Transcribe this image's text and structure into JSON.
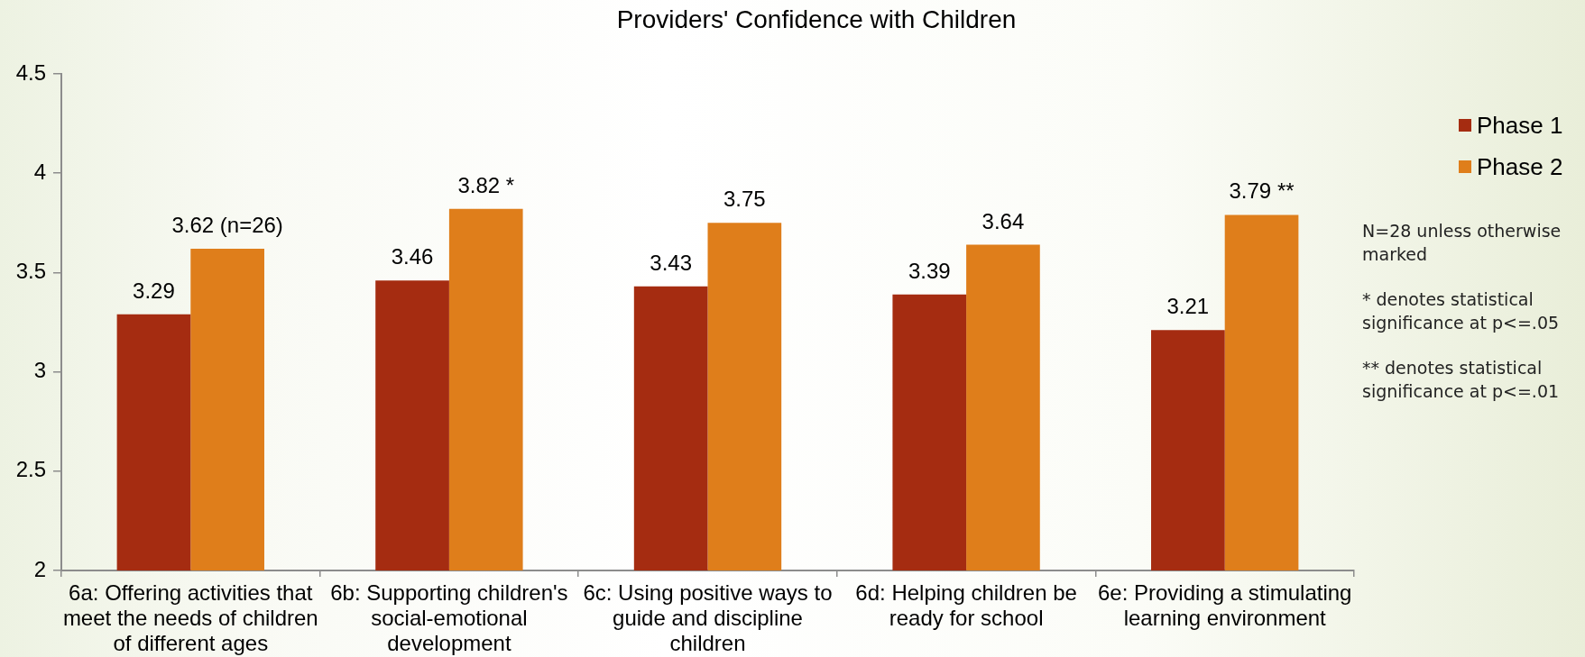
{
  "chart_data": {
    "type": "bar",
    "title": "Providers' Confidence with Children",
    "categories": [
      "6a: Offering activities that meet the needs of children of different ages",
      "6b: Supporting children's social-emotional development",
      "6c: Using positive ways to guide and discipline children",
      "6d: Helping children be ready for school",
      "6e: Providing a stimulating learning environment"
    ],
    "series": [
      {
        "name": "Phase 1",
        "color": "#a52c11",
        "values": [
          3.29,
          3.46,
          3.43,
          3.39,
          3.21
        ],
        "value_labels": [
          "3.29",
          "3.46",
          "3.43",
          "3.39",
          "3.21"
        ]
      },
      {
        "name": "Phase 2",
        "color": "#df7e1b",
        "values": [
          3.62,
          3.82,
          3.75,
          3.64,
          3.79
        ],
        "value_labels": [
          "3.62 (n=26)",
          "3.82 *",
          "3.75",
          "3.64",
          "3.79 **"
        ]
      }
    ],
    "ylim": [
      2,
      4.5
    ],
    "yticks": [
      2,
      2.5,
      3,
      3.5,
      4,
      4.5
    ],
    "grid": false,
    "legend": "top right",
    "annotations": [
      "N=28 unless otherwise marked",
      "* denotes statistical significance at p<=.05",
      "** denotes statistical significance at p<=.01"
    ]
  }
}
